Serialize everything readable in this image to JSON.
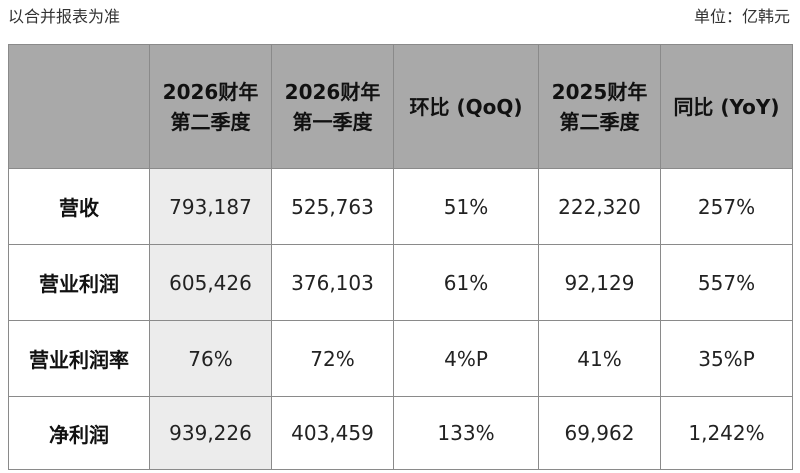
{
  "caption_left": "以合并报表为准",
  "caption_right": "单位：亿韩元",
  "header": {
    "corner": "",
    "col1_line1": "2026财年",
    "col1_line2": "第二季度",
    "col2_line1": "2026财年",
    "col2_line2": "第一季度",
    "col3": "环比 (QoQ)",
    "col4_line1": "2025财年",
    "col4_line2": "第二季度",
    "col5": "同比 (YoY)"
  },
  "rows": [
    {
      "label": "营收",
      "c1": "793,187",
      "c2": "525,763",
      "c3": "51%",
      "c4": "222,320",
      "c5": "257%"
    },
    {
      "label": "营业利润",
      "c1": "605,426",
      "c2": "376,103",
      "c3": "61%",
      "c4": "92,129",
      "c5": "557%"
    },
    {
      "label": "营业利润率",
      "c1": "76%",
      "c2": "72%",
      "c3": "4%P",
      "c4": "41%",
      "c5": "35%P"
    },
    {
      "label": "净利润",
      "c1": "939,226",
      "c2": "403,459",
      "c3": "133%",
      "c4": "69,962",
      "c5": "1,242%"
    }
  ],
  "colors": {
    "header_bg": "#a9a9a9",
    "highlight_column_bg": "#ececec",
    "border": "#8a8a8a"
  }
}
